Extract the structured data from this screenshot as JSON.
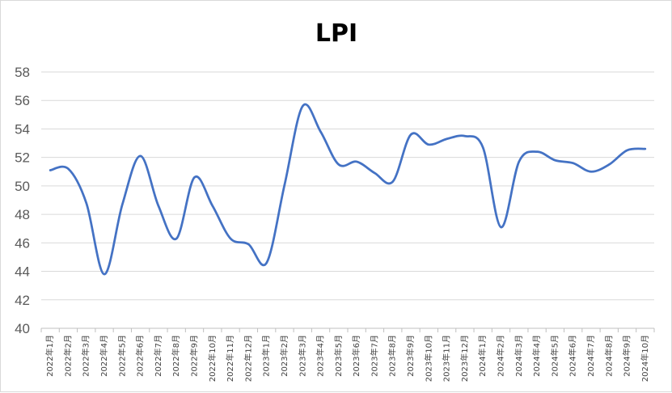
{
  "chart_data": {
    "type": "line",
    "title": "LPI",
    "xlabel": "",
    "ylabel": "",
    "ylim": [
      40,
      58
    ],
    "yticks": [
      "40",
      "42",
      "44",
      "46",
      "48",
      "50",
      "52",
      "54",
      "56",
      "58"
    ],
    "grid": "horizontal",
    "legend": "none",
    "categories": [
      "2022年1月",
      "2022年2月",
      "2022年3月",
      "2022年4月",
      "2022年5月",
      "2022年6月",
      "2022年7月",
      "2022年8月",
      "2022年9月",
      "2022年10月",
      "2022年11月",
      "2022年12月",
      "2023年1月",
      "2023年2月",
      "2023年3月",
      "2023年4月",
      "2023年5月",
      "2023年6月",
      "2023年7月",
      "2023年8月",
      "2023年9月",
      "2023年10月",
      "2023年11月",
      "2023年12月",
      "2024年1月",
      "2024年2月",
      "2024年3月",
      "2024年4月",
      "2024年5月",
      "2024年6月",
      "2024年7月",
      "2024年8月",
      "2024年9月",
      "2024年10月"
    ],
    "series": [
      {
        "values": [
          51.1,
          51.2,
          48.8,
          43.8,
          48.7,
          52.1,
          48.6,
          46.3,
          50.6,
          48.6,
          46.3,
          45.9,
          44.6,
          50.1,
          55.6,
          53.8,
          51.5,
          51.7,
          50.9,
          50.3,
          53.6,
          52.9,
          53.3,
          53.5,
          52.7,
          47.1,
          51.7,
          52.4,
          51.8,
          51.6,
          51.0,
          51.5,
          52.5,
          52.6
        ]
      }
    ],
    "colors": {
      "line": "#4472c4",
      "grid": "#d9d9d9",
      "axis": "#bfbfbf",
      "frame": "#d9d9d9"
    }
  }
}
